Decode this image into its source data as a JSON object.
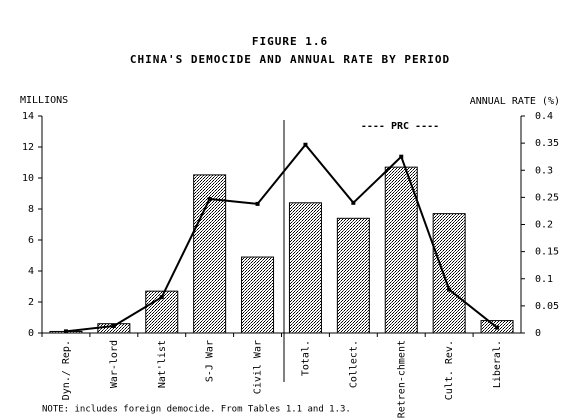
{
  "chart_data": {
    "type": "bar-line",
    "title": "FIGURE 1.6",
    "subtitle": "CHINA'S DEMOCIDE AND ANNUAL RATE BY PERIOD",
    "y_label": "MILLIONS",
    "y2_label": "ANNUAL RATE (%)",
    "annotation": "----  PRC  ----",
    "note": "NOTE: includes foreign democide. From Tables 1.1 and 1.3.",
    "categories": [
      "Dyn./ Rep.",
      "War-lord",
      "Nat'list",
      "S-J War",
      "Civil War",
      "Total.",
      "Collect.",
      "Retren-chment",
      "Cult. Rev.",
      "Liberal."
    ],
    "series": [
      {
        "name": "Democide",
        "type": "bar",
        "color": "#a0a0a0",
        "values": [
          0.1,
          0.6,
          2.7,
          10.2,
          4.9,
          8.4,
          7.4,
          10.7,
          7.7,
          0.8
        ]
      },
      {
        "name": "Annual rate",
        "type": "line",
        "axis": "y2",
        "color": "#000000",
        "values": [
          0.003,
          0.013,
          0.066,
          0.247,
          0.238,
          0.347,
          0.24,
          0.325,
          0.08,
          0.01
        ]
      }
    ],
    "ylim": [
      0,
      14
    ],
    "yticks": [
      0,
      2,
      4,
      6,
      8,
      10,
      12,
      14
    ],
    "y2lim": [
      0,
      0.4
    ],
    "y2ticks": [
      0,
      0.05,
      0.1,
      0.15,
      0.2,
      0.25,
      0.3,
      0.35,
      0.4
    ]
  }
}
